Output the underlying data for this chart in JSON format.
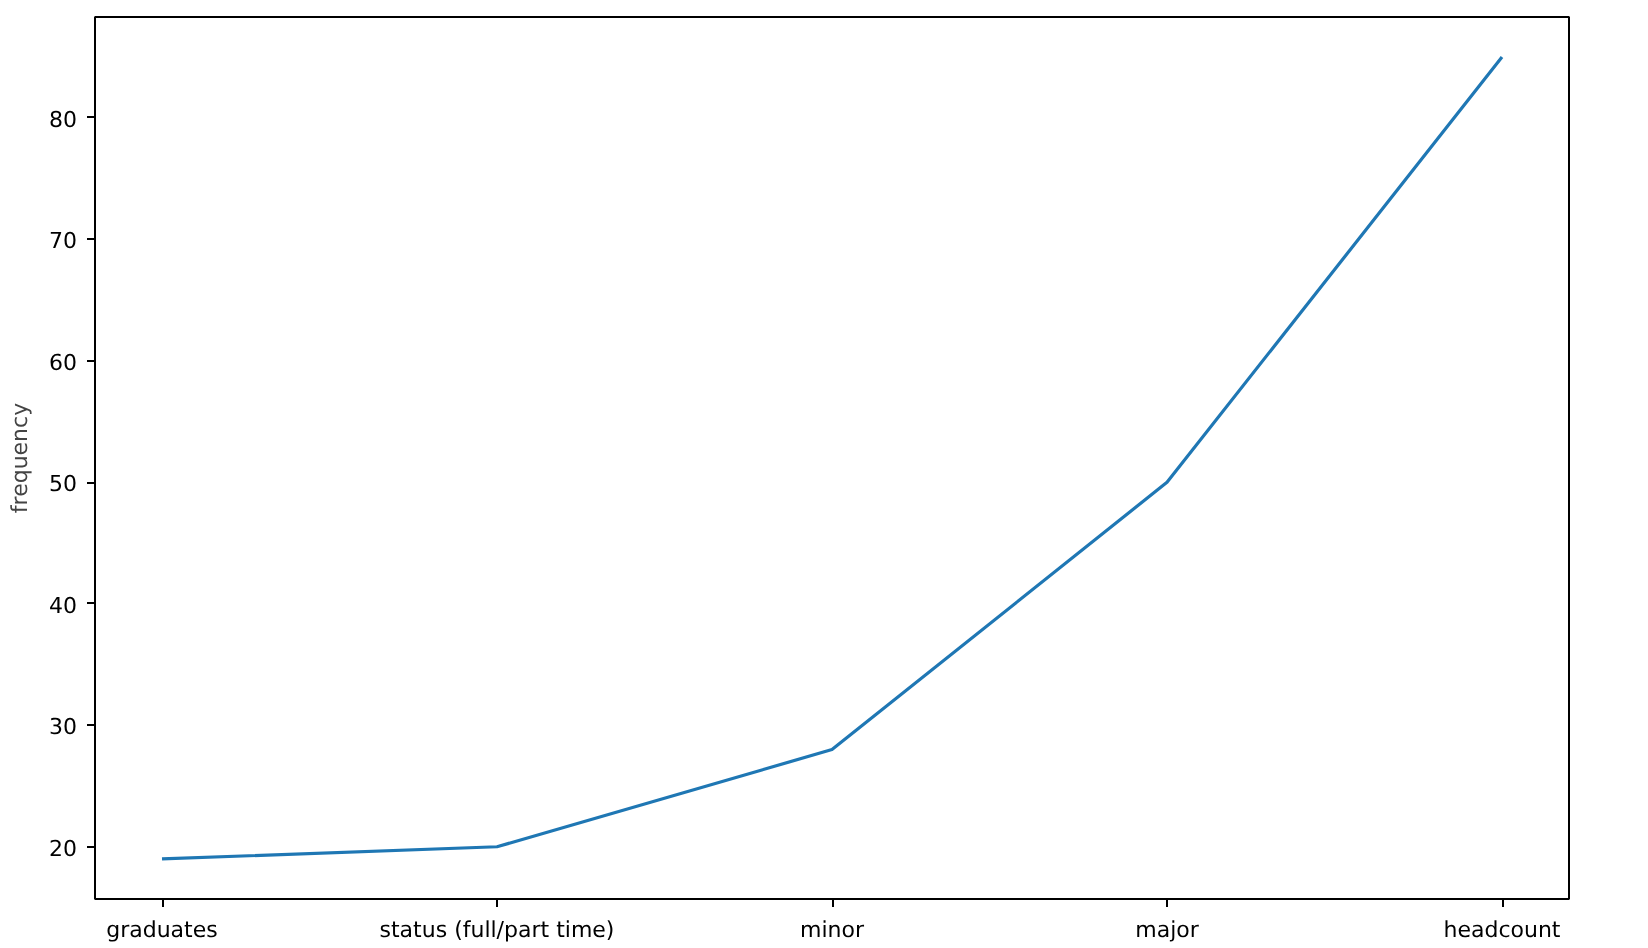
{
  "chart_data": {
    "type": "line",
    "ylabel": "frequency",
    "categories": [
      "graduates",
      "status (full/part time)",
      "minor",
      "major",
      "headcount"
    ],
    "series": [
      {
        "color": "#1f77b4",
        "values": [
          19,
          20,
          28,
          50,
          85
        ]
      }
    ],
    "ylim": [
      15.7,
      88.3
    ],
    "yticks": [
      20,
      30,
      40,
      50,
      60,
      70,
      80
    ],
    "line_style": "solid"
  }
}
